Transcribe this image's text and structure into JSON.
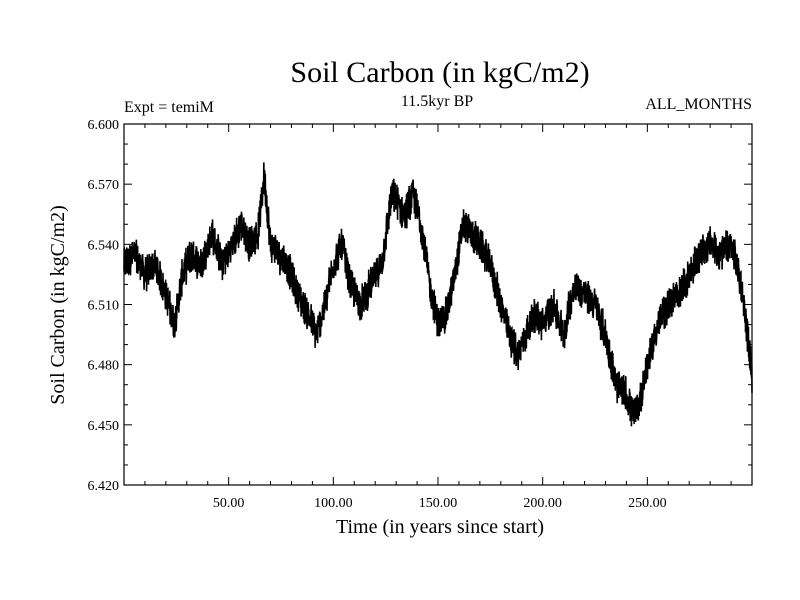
{
  "chart_data": {
    "type": "line",
    "title": "Soil Carbon (in kgC/m2)",
    "subtitle": "11.5kyr BP",
    "top_left_label": "Expt = temiM",
    "top_right_label": "ALL_MONTHS",
    "xlabel": "Time (in years since start)",
    "ylabel": "Soil Carbon (in kgC/m2)",
    "xlim": [
      0,
      300
    ],
    "ylim": [
      6.42,
      6.6
    ],
    "x_ticks": [
      50,
      100,
      150,
      200,
      250
    ],
    "x_tick_labels": [
      "50.00",
      "100.00",
      "150.00",
      "200.00",
      "250.00"
    ],
    "y_ticks": [
      6.42,
      6.45,
      6.48,
      6.51,
      6.54,
      6.57,
      6.6
    ],
    "y_tick_labels": [
      "6.420",
      "6.450",
      "6.480",
      "6.510",
      "6.540",
      "6.570",
      "6.600"
    ],
    "series": [
      {
        "name": "Soil Carbon",
        "color": "#000000",
        "x": [
          0,
          5,
          10,
          15,
          20,
          24,
          28,
          32,
          37,
          42,
          47,
          52,
          56,
          60,
          64,
          67,
          70,
          74,
          78,
          83,
          88,
          92,
          96,
          100,
          104,
          108,
          113,
          118,
          123,
          128,
          131,
          134,
          138,
          142,
          146,
          150,
          154,
          158,
          162,
          166,
          170,
          175,
          180,
          184,
          188,
          192,
          196,
          200,
          205,
          210,
          215,
          220,
          225,
          230,
          235,
          240,
          243,
          246,
          250,
          255,
          260,
          265,
          270,
          275,
          280,
          285,
          290,
          295,
          300
        ],
        "y": [
          6.53,
          6.535,
          6.525,
          6.53,
          6.515,
          6.5,
          6.525,
          6.535,
          6.53,
          6.545,
          6.53,
          6.54,
          6.55,
          6.54,
          6.545,
          6.575,
          6.54,
          6.535,
          6.53,
          6.515,
          6.505,
          6.495,
          6.51,
          6.53,
          6.54,
          6.52,
          6.51,
          6.52,
          6.53,
          6.565,
          6.56,
          6.555,
          6.565,
          6.55,
          6.52,
          6.5,
          6.505,
          6.525,
          6.55,
          6.545,
          6.54,
          6.53,
          6.51,
          6.495,
          6.485,
          6.495,
          6.505,
          6.5,
          6.51,
          6.495,
          6.52,
          6.515,
          6.51,
          6.495,
          6.47,
          6.465,
          6.455,
          6.46,
          6.48,
          6.5,
          6.51,
          6.515,
          6.525,
          6.535,
          6.54,
          6.535,
          6.54,
          6.52,
          6.475
        ]
      }
    ]
  }
}
